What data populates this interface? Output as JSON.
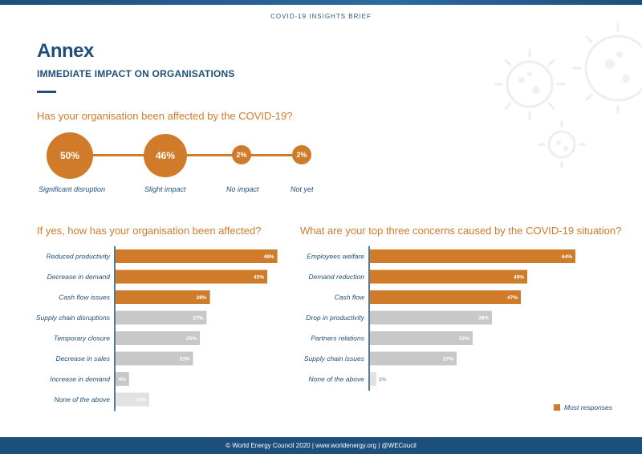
{
  "header": {
    "brief": "COVID-19 INSIGHTS BRIEF"
  },
  "page": {
    "title": "Annex",
    "subtitle": "IMMEDIATE IMPACT ON ORGANISATIONS"
  },
  "q1": {
    "question": "Has your organisation been affected by the COVID-19?",
    "items": [
      {
        "value": "50%",
        "label": "Significant disruption"
      },
      {
        "value": "46%",
        "label": "Slight impact"
      },
      {
        "value": "2%",
        "label": "No impact"
      },
      {
        "value": "2%",
        "label": "Not yet"
      }
    ]
  },
  "colors": {
    "orange": "#d07b2a",
    "grey": "#c8c8c8",
    "lightgrey": "#e2e2e2",
    "navy": "#1f4f7a"
  },
  "chart_data": [
    {
      "type": "bar",
      "orientation": "horizontal",
      "title": "If yes, how has your organisation been affected?",
      "categories": [
        "Reduced productivity",
        "Decrease in demand",
        "Cash flow issues",
        "Supply chain disruptions",
        "Temporary closure",
        "Decrease in sales",
        "Increase in demand",
        "None of the above"
      ],
      "values": [
        48,
        45,
        28,
        27,
        25,
        23,
        4,
        10
      ],
      "value_labels": [
        "48%",
        "45%",
        "28%",
        "27%",
        "25%",
        "23%",
        "4%",
        "10%"
      ],
      "highlight": [
        true,
        true,
        true,
        false,
        false,
        false,
        false,
        false
      ]
    },
    {
      "type": "bar",
      "orientation": "horizontal",
      "title": "What are your top three concerns caused by the COVID-19 situation?",
      "categories": [
        "Employees welfare",
        "Demand reduction",
        "Cash flow",
        "Drop in productivity",
        "Partners relations",
        "Supply chain issues",
        "None of the above"
      ],
      "values": [
        64,
        49,
        47,
        38,
        32,
        27,
        2
      ],
      "value_labels": [
        "64%",
        "49%",
        "47%",
        "38%",
        "32%",
        "27%",
        "2%"
      ],
      "highlight": [
        true,
        true,
        true,
        false,
        false,
        false,
        false
      ],
      "legend": "Most responses"
    }
  ],
  "footer": {
    "text": "© World Energy Council 2020 | www.worldenergy.org | @WECoucil"
  }
}
